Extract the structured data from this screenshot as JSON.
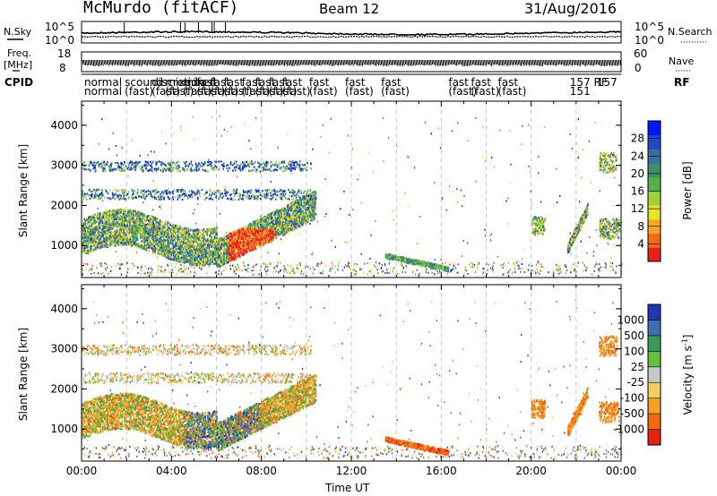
{
  "header": {
    "station": "McMurdo (fitACF)",
    "beam": "Beam 12",
    "date": "31/Aug/2016"
  },
  "top_panels": {
    "nsky_label": "N.Sky",
    "nsearch_label": "N.Search",
    "noise_ticks": [
      "10^5",
      "10^0"
    ],
    "freq_label_line1": "Freq.",
    "freq_label_line2": "[MHz]",
    "freq_ticks": [
      "18",
      "8"
    ],
    "nave_label": "Nave",
    "nave_ticks": [
      "60",
      "0"
    ],
    "cpid_label": "CPID",
    "rf_label": "RF",
    "cpid_row1": [
      "normal",
      "scound",
      "discretion",
      "mixed",
      "mixed",
      "fast",
      "fast",
      "fast",
      "fast",
      "fast",
      "fast",
      "fast",
      "fast",
      "fast",
      "fast",
      "fast",
      "fast",
      "fast",
      "157 RF",
      "157"
    ],
    "cpid_row2": [
      "normal",
      "(fast)",
      "(fast)",
      "(fast)",
      "(fast)",
      "(fast)",
      "(fast)",
      "(fast)",
      "(fast)",
      "(fast)",
      "(fast)",
      "(fast)",
      "(fast)",
      "(fast)",
      "(fast)",
      "(fast)",
      "(fast)",
      "(fast)",
      "151"
    ]
  },
  "chart_data": [
    {
      "type": "heatmap",
      "name": "power",
      "ylabel": "Slant Range [km]",
      "ylim": [
        200,
        4600
      ],
      "y_ticks": [
        "4000",
        "3000",
        "2000",
        "1000"
      ],
      "xlim": [
        0,
        24
      ],
      "colorbar": {
        "label": "Power [dB]",
        "ticks": [
          "28",
          "24",
          "20",
          "16",
          "12",
          "8",
          "4"
        ],
        "colors": [
          "#0018ff",
          "#2048c8",
          "#3a6fa0",
          "#3f8f6a",
          "#55b049",
          "#9fd03a",
          "#e8e12a",
          "#f5a623",
          "#f06a1b",
          "#e8201a"
        ]
      },
      "regions": [
        {
          "t": [
            0.0,
            10.4
          ],
          "range_km": [
            600,
            2400
          ],
          "level": "8-28 dB"
        },
        {
          "t": [
            13.5,
            16.3
          ],
          "range_km": [
            350,
            750
          ],
          "level": "8-16 dB"
        },
        {
          "t": [
            19.8,
            24.0
          ],
          "range_km": [
            800,
            3300
          ],
          "level": "4-24 dB"
        }
      ]
    },
    {
      "type": "heatmap",
      "name": "velocity",
      "ylabel": "Slant Range [km]",
      "ylim": [
        200,
        4600
      ],
      "y_ticks": [
        "4000",
        "3000",
        "2000",
        "1000"
      ],
      "xlim": [
        0,
        24
      ],
      "xlabel": "Time UT",
      "x_ticks": [
        "00:00",
        "04:00",
        "08:00",
        "12:00",
        "16:00",
        "20:00",
        "00:00"
      ],
      "colorbar": {
        "label": "Velocity [m s",
        "label_sup": "-1",
        "label_end": "]",
        "ticks": [
          "1000",
          "500",
          "100",
          "25",
          "-25",
          "-100",
          "-500",
          "-1000"
        ],
        "colors": [
          "#2038b8",
          "#3d6fb0",
          "#3a9a5a",
          "#66c23d",
          "#c8c8c8",
          "#f0d060",
          "#f5a020",
          "#f06a10",
          "#e82010"
        ]
      },
      "regions": [
        {
          "t": [
            0.0,
            10.4
          ],
          "range_km": [
            500,
            2400
          ],
          "level": "-500 to 1000 m/s"
        },
        {
          "t": [
            13.5,
            16.3
          ],
          "range_km": [
            350,
            750
          ],
          "level": "-100 to -500 m/s"
        },
        {
          "t": [
            19.8,
            24.0
          ],
          "range_km": [
            800,
            3300
          ],
          "level": "-100 to -500 m/s"
        }
      ]
    }
  ]
}
